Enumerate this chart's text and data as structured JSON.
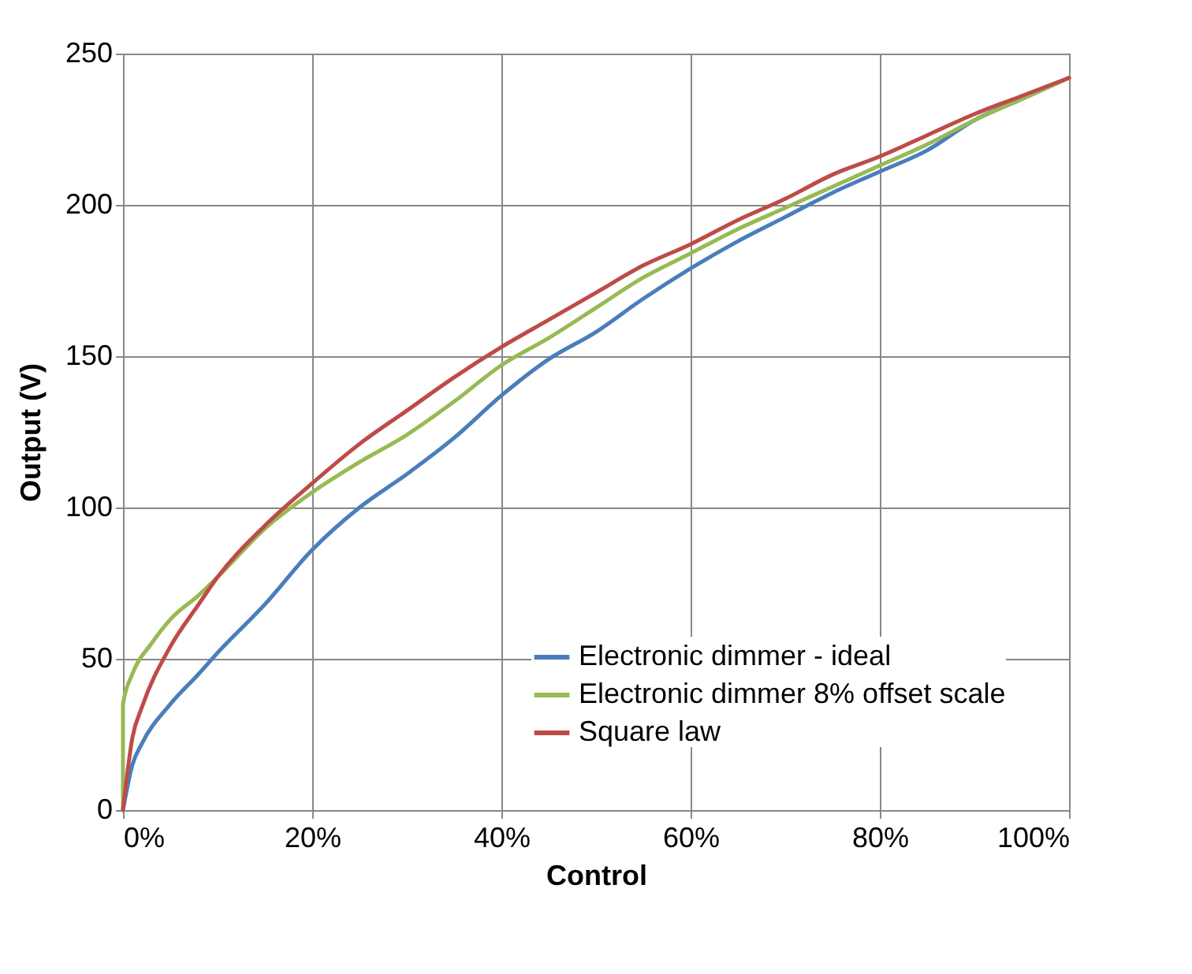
{
  "chart_data": {
    "type": "line",
    "xlabel": "Control",
    "ylabel": "Output (V)",
    "xlim": [
      0,
      100
    ],
    "ylim": [
      0,
      250
    ],
    "xticks": [
      {
        "value": 0,
        "label": "0%"
      },
      {
        "value": 20,
        "label": "20%"
      },
      {
        "value": 40,
        "label": "40%"
      },
      {
        "value": 60,
        "label": "60%"
      },
      {
        "value": 80,
        "label": "80%"
      },
      {
        "value": 100,
        "label": "100%"
      }
    ],
    "yticks": [
      0,
      50,
      100,
      150,
      200,
      250
    ],
    "grid": true,
    "legend": "bottom right",
    "marker": "none",
    "line_style": "solid",
    "series": [
      {
        "name": "Electronic dimmer - ideal",
        "color": "#4a7ebb",
        "x": [
          0,
          1,
          2,
          5,
          8,
          10,
          15,
          20,
          25,
          30,
          35,
          40,
          45,
          50,
          55,
          60,
          65,
          70,
          75,
          80,
          85,
          90,
          95,
          100
        ],
        "values": [
          0,
          15,
          22,
          35,
          45,
          52,
          68,
          86,
          100,
          111,
          123,
          137,
          149,
          158,
          169,
          179,
          188,
          196,
          204,
          211,
          218,
          228,
          235,
          242
        ]
      },
      {
        "name": "Electronic dimmer 8% offset scale",
        "color": "#98b954",
        "x": [
          0,
          0,
          1,
          3,
          5,
          8,
          10,
          15,
          20,
          25,
          30,
          35,
          40,
          45,
          50,
          55,
          60,
          65,
          70,
          75,
          80,
          85,
          90,
          95,
          100
        ],
        "values": [
          0,
          35,
          45,
          55,
          63,
          71,
          77,
          93,
          105,
          115,
          124,
          135,
          147,
          156,
          166,
          176,
          184,
          192,
          199,
          206,
          213,
          220,
          228,
          235,
          242
        ]
      },
      {
        "name": "Square law",
        "color": "#be4b48",
        "x": [
          0,
          1,
          2,
          5,
          8,
          10,
          15,
          20,
          25,
          30,
          35,
          40,
          45,
          50,
          55,
          60,
          65,
          70,
          75,
          80,
          85,
          90,
          95,
          100
        ],
        "values": [
          0,
          24,
          34,
          54,
          68,
          77,
          94,
          108,
          121,
          132,
          143,
          153,
          162,
          171,
          180,
          187,
          195,
          202,
          210,
          216,
          223,
          230,
          236,
          242
        ]
      }
    ]
  }
}
